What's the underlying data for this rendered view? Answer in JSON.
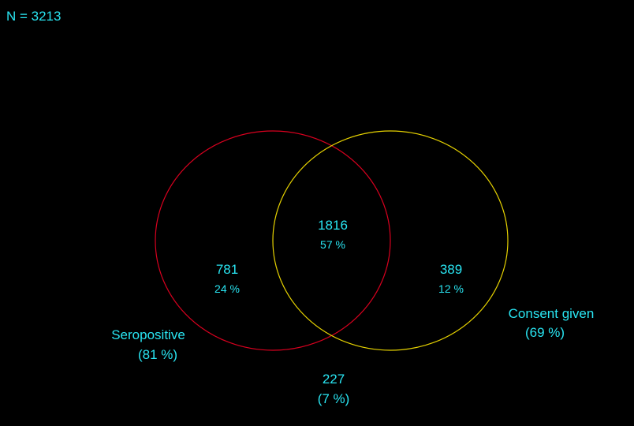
{
  "header": {
    "total": "N = 3213"
  },
  "sets": {
    "a": {
      "label": "Seropositive",
      "pct": "(81 %)",
      "color": "#d9001f"
    },
    "b": {
      "label": "Consent given",
      "pct": "(69 %)",
      "color": "#e6d200"
    }
  },
  "regions": {
    "a_only": {
      "count": "781",
      "pct": "24 %"
    },
    "both": {
      "count": "1816",
      "pct": "57 %"
    },
    "b_only": {
      "count": "389",
      "pct": "12 %"
    },
    "neither": {
      "count": "227",
      "pct": "(7 %)"
    }
  },
  "colors": {
    "background": "#000000",
    "text": "#29e5f2"
  }
}
